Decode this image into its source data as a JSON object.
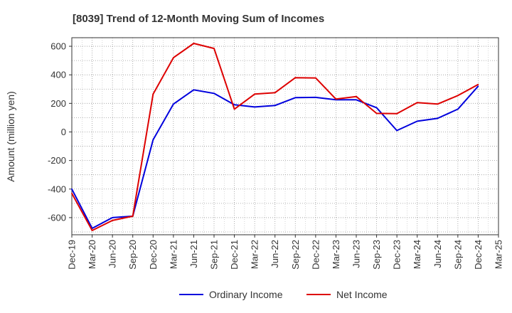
{
  "chart_data": {
    "type": "line",
    "title": "[8039]  Trend of 12-Month Moving Sum of Incomes",
    "ylabel": "Amount (million yen)",
    "xlabel": "",
    "ylim": [
      -720,
      660
    ],
    "yticks": [
      600,
      400,
      200,
      0,
      -200,
      -400,
      -600
    ],
    "grid": true,
    "legend_position": "bottom",
    "categories": [
      "Dec-19",
      "Mar-20",
      "Jun-20",
      "Sep-20",
      "Dec-20",
      "Mar-21",
      "Jun-21",
      "Sep-21",
      "Dec-21",
      "Mar-22",
      "Jun-22",
      "Sep-22",
      "Dec-22",
      "Mar-23",
      "Jun-23",
      "Sep-23",
      "Dec-23",
      "Mar-24",
      "Jun-24",
      "Sep-24",
      "Dec-24",
      "Mar-25"
    ],
    "series": [
      {
        "name": "Ordinary Income",
        "color": "#0000dd",
        "values": [
          -400,
          -675,
          -600,
          -590,
          -55,
          195,
          295,
          270,
          190,
          175,
          185,
          240,
          242,
          225,
          225,
          170,
          10,
          75,
          95,
          160,
          320,
          null
        ]
      },
      {
        "name": "Net Income",
        "color": "#dd0000",
        "values": [
          -430,
          -690,
          -620,
          -590,
          265,
          520,
          620,
          585,
          160,
          265,
          275,
          380,
          378,
          230,
          248,
          130,
          128,
          205,
          195,
          255,
          332,
          null
        ]
      }
    ]
  }
}
